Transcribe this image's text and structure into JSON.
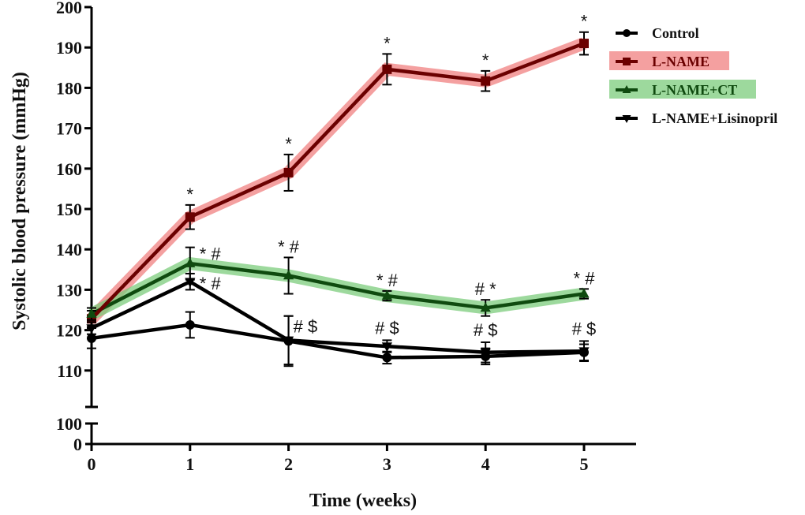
{
  "chart_data": {
    "type": "line",
    "title": "",
    "xlabel": "Time (weeks)",
    "ylabel": "Systolic blood pressure (mmHg)",
    "x": [
      0,
      1,
      2,
      3,
      4,
      5
    ],
    "x_ticks": [
      "0",
      "1",
      "2",
      "3",
      "4",
      "5"
    ],
    "y_ticks_upper": [
      "110",
      "120",
      "130",
      "140",
      "150",
      "160",
      "170",
      "180",
      "190",
      "200"
    ],
    "y_ticks_lower": [
      "0",
      "100"
    ],
    "ylim_upper": [
      102,
      200
    ],
    "ylim_lower": [
      0,
      100
    ],
    "axis_break": true,
    "grid": false,
    "legend_position": "top-right",
    "series": [
      {
        "name": "Control",
        "marker": "circle",
        "color": "#000000",
        "highlight": null,
        "values": [
          118,
          121.3,
          117.3,
          113.2,
          113.5,
          114.5
        ],
        "errors": [
          2.5,
          3.2,
          6.2,
          1.5,
          2,
          2
        ],
        "annotations": [
          "",
          "",
          "",
          "",
          "",
          ""
        ]
      },
      {
        "name": "L-NAME",
        "marker": "square",
        "color": "#6b0000",
        "highlight": "#f08080",
        "values": [
          122.8,
          148,
          159,
          184.6,
          181.7,
          191
        ],
        "errors": [
          2,
          3,
          4.5,
          3.8,
          2.5,
          2.8
        ],
        "annotations": [
          "",
          "*",
          "*",
          "*",
          "*",
          "*"
        ]
      },
      {
        "name": "L-NAME+CT",
        "marker": "triangle-up",
        "color": "#0f4a0f",
        "highlight": "#7ccc7c",
        "values": [
          124,
          136.5,
          133.5,
          128.5,
          125.5,
          129
        ],
        "errors": [
          1.5,
          4,
          4.5,
          1.2,
          2,
          1.2
        ],
        "annotations": [
          "",
          "*#",
          "* #",
          "*#",
          "#*",
          "*#"
        ]
      },
      {
        "name": "L-NAME+Lisinopril",
        "marker": "triangle-down",
        "color": "#000000",
        "highlight": null,
        "values": [
          120.5,
          132,
          117.5,
          116,
          114.5,
          114.8
        ],
        "errors": [
          1.5,
          2,
          6,
          1.5,
          2.5,
          2.5
        ],
        "annotations": [
          "",
          "*#",
          "#$",
          "#$",
          "#$",
          "#$"
        ]
      }
    ]
  }
}
